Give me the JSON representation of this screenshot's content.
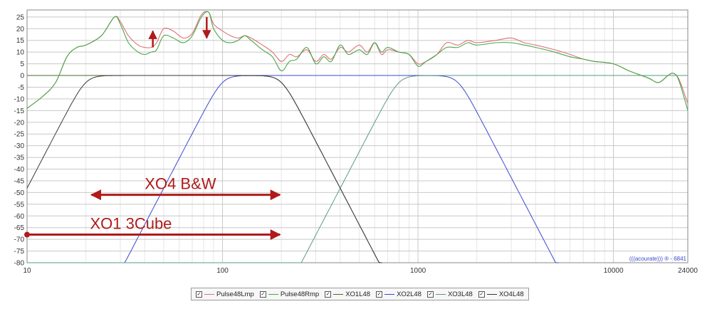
{
  "chart_data": {
    "type": "line",
    "x_scale": "log",
    "xlim": [
      10,
      24000
    ],
    "ylim": [
      -80,
      28
    ],
    "x_ticks": [
      "10",
      "100",
      "1000",
      "10000",
      "24000"
    ],
    "y_ticks": [
      25,
      20,
      15,
      10,
      5,
      0,
      -5,
      -10,
      -15,
      -20,
      -25,
      -30,
      -35,
      -40,
      -45,
      -50,
      -55,
      -60,
      -65,
      -70,
      -75,
      -80
    ],
    "grid": true,
    "legend_position": "bottom-center",
    "watermark": "(((acourate))) ® - 6841",
    "series": [
      {
        "name": "Pulse48Lmp",
        "color": "#e0707a",
        "x": [
          10,
          12,
          14,
          16,
          18,
          20,
          24,
          28,
          30,
          33,
          37,
          40,
          43,
          46,
          50,
          56,
          63,
          70,
          78,
          85,
          90,
          100,
          110,
          120,
          130,
          140,
          160,
          180,
          200,
          220,
          240,
          270,
          300,
          330,
          360,
          400,
          440,
          500,
          550,
          600,
          650,
          700,
          800,
          900,
          1000,
          1100,
          1250,
          1400,
          1600,
          1800,
          2000,
          2500,
          3000,
          3500,
          4000,
          5000,
          6000,
          7000,
          8000,
          10000,
          12000,
          15000,
          17000,
          19000,
          20000,
          21000,
          22000,
          24000
        ],
        "y": [
          -14,
          -9,
          -3,
          8,
          12,
          13,
          17,
          25,
          23,
          17,
          13,
          12,
          12,
          14,
          20,
          19,
          16,
          18,
          26,
          27,
          22,
          19,
          17,
          16,
          17,
          16,
          13,
          10,
          6,
          9,
          8,
          11,
          6,
          9,
          7,
          12,
          10,
          13,
          10,
          14,
          9,
          11,
          10,
          9,
          5,
          6,
          9,
          14,
          13,
          15,
          14,
          15,
          16,
          14,
          13,
          11,
          9,
          7,
          6,
          5,
          2,
          -1,
          -3,
          0,
          1,
          0,
          -3,
          -12
        ]
      },
      {
        "name": "Pulse48Rmp",
        "color": "#48a848",
        "x": [
          10,
          12,
          14,
          16,
          18,
          20,
          24,
          28,
          30,
          33,
          37,
          40,
          43,
          46,
          50,
          56,
          63,
          70,
          78,
          85,
          90,
          100,
          110,
          120,
          130,
          140,
          160,
          180,
          200,
          220,
          240,
          270,
          300,
          330,
          360,
          400,
          440,
          500,
          550,
          600,
          650,
          700,
          800,
          900,
          1000,
          1100,
          1250,
          1400,
          1600,
          1800,
          2000,
          2500,
          3000,
          3500,
          4000,
          5000,
          6000,
          7000,
          8000,
          10000,
          12000,
          15000,
          17000,
          19000,
          20000,
          21000,
          22000,
          24000
        ],
        "y": [
          -14,
          -9,
          -3,
          8,
          12,
          13,
          17,
          25,
          22,
          14,
          10,
          9,
          10,
          11,
          17,
          16,
          14,
          17,
          25,
          27,
          20,
          15,
          14,
          15,
          17,
          15,
          11,
          8,
          2,
          6,
          7,
          12,
          5,
          8,
          6,
          13,
          9,
          11,
          9,
          14,
          10,
          12,
          10,
          9,
          4,
          6,
          9,
          12,
          12,
          14,
          13,
          14,
          14,
          13,
          12,
          10,
          8,
          7,
          6,
          5,
          2,
          -1,
          -3,
          0,
          1,
          0,
          -4,
          -15
        ]
      },
      {
        "name": "XO1L48",
        "color": "#4a6a28",
        "kind": "lowpass",
        "fc": 200,
        "level": 0
      },
      {
        "name": "XO2L48",
        "color": "#3a48d0",
        "kind": "bandpass",
        "f_low": 100,
        "f_high": 1600,
        "level": 0
      },
      {
        "name": "XO3L48",
        "color": "#5a9a80",
        "kind": "highpass",
        "fc": 800,
        "level": 0
      },
      {
        "name": "XO4L48",
        "color": "#3a3a3a",
        "kind": "bandpass",
        "f_low": 20,
        "f_high": 200,
        "level": 0
      }
    ],
    "annotations": [
      {
        "text": "XO4 B&W",
        "arrow_from_hz": 21,
        "arrow_to_hz": 200,
        "at_db": -51
      },
      {
        "text": "XO1 3Cube",
        "arrow_from_hz": 10,
        "arrow_to_hz": 200,
        "at_db": -68
      },
      {
        "type": "arrow-up",
        "at_hz": 44,
        "from_db": 12,
        "to_db": 19
      },
      {
        "type": "arrow-down",
        "at_hz": 83,
        "from_db": 25,
        "to_db": 16
      }
    ],
    "annotation_color": "#b01a1a"
  }
}
